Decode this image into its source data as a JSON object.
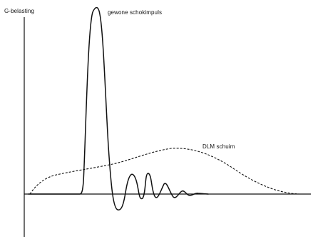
{
  "labels": {
    "y_axis": "G-belasting",
    "curve_regular_shock": "gewone schokimpuls",
    "curve_dlm_foam": "DLM schuim"
  },
  "colors": {
    "stroke": "#111111",
    "background": "#ffffff"
  }
}
